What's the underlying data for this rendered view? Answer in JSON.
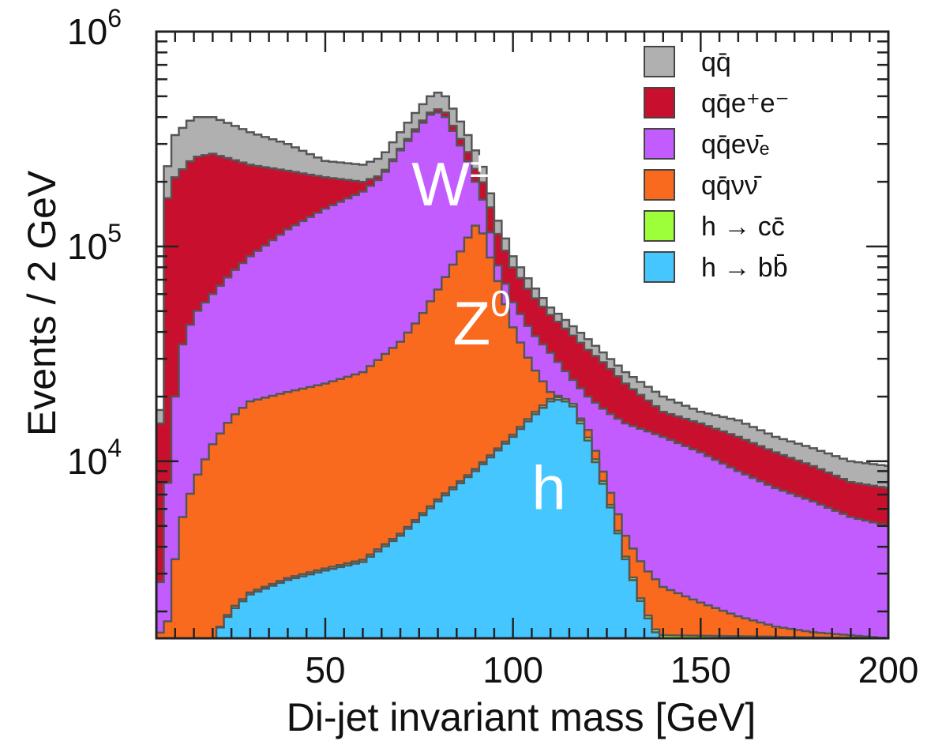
{
  "chart_data": {
    "type": "area",
    "stacked": true,
    "histogram": true,
    "bin_width": 2,
    "xlabel": "Di-jet invariant mass [GeV]",
    "ylabel": "Events / 2 GeV",
    "xlim": [
      5,
      200
    ],
    "ylim": [
      1500,
      1000000
    ],
    "yscale": "log",
    "x_ticks": [
      50,
      100,
      150,
      200
    ],
    "x_tick_labels": [
      "50",
      "100",
      "150",
      "200"
    ],
    "y_ticks": [
      10000,
      100000,
      1000000
    ],
    "y_tick_labels": [
      {
        "base": "10",
        "exp": "4"
      },
      {
        "base": "10",
        "exp": "5"
      },
      {
        "base": "10",
        "exp": "6"
      }
    ],
    "legend_position": "top-right",
    "legend": [
      {
        "label": "qq̄",
        "color": "#b0b0b0"
      },
      {
        "label": "qq̄e⁺e⁻",
        "color": "#c8102e"
      },
      {
        "label": "qq̄eν̄ₑ",
        "color": "#c25cff"
      },
      {
        "label": "qq̄νν̄",
        "color": "#f96a1e"
      },
      {
        "label": "h → cc̄",
        "color": "#9cff3a"
      },
      {
        "label": "h → bb̄",
        "color": "#46c6ff"
      }
    ],
    "annotations": [
      {
        "text": "W±",
        "x": 73,
        "y": 155000
      },
      {
        "text": "Z0",
        "x": 84,
        "y": 35000
      },
      {
        "text": "h",
        "x": 105,
        "y": 6000
      }
    ],
    "series_cumulative": [
      {
        "name": "h → bb̄",
        "color": "#46c6ff",
        "x": [
          5,
          10,
          15,
          20,
          25,
          30,
          40,
          50,
          60,
          70,
          80,
          90,
          100,
          105,
          110,
          113,
          116,
          120,
          125,
          130,
          135,
          138,
          140,
          200
        ],
        "y": [
          1500,
          1500,
          1500,
          1500,
          2000,
          2400,
          2800,
          3100,
          3400,
          4500,
          6500,
          9000,
          13000,
          16000,
          19000,
          19500,
          18000,
          12500,
          7000,
          3500,
          2000,
          1600,
          1500,
          1500
        ]
      },
      {
        "name": "h → cc̄",
        "color": "#9cff3a",
        "x": [
          5,
          10,
          15,
          20,
          25,
          30,
          40,
          50,
          60,
          70,
          80,
          90,
          100,
          105,
          110,
          113,
          116,
          120,
          125,
          130,
          135,
          138,
          140,
          200
        ],
        "y": [
          1500,
          1500,
          1500,
          1500,
          2050,
          2450,
          2860,
          3170,
          3480,
          4600,
          6650,
          9200,
          13300,
          16400,
          19500,
          20000,
          18500,
          12900,
          7200,
          3600,
          2060,
          1650,
          1550,
          1500
        ]
      },
      {
        "name": "qq̄νν̄",
        "color": "#f96a1e",
        "x": [
          5,
          8,
          10,
          12,
          15,
          20,
          25,
          30,
          40,
          50,
          60,
          70,
          75,
          80,
          85,
          88,
          90,
          92,
          95,
          100,
          105,
          110,
          115,
          120,
          125,
          130,
          135,
          140,
          150,
          160,
          170,
          180,
          190,
          200
        ],
        "y": [
          1500,
          1800,
          3500,
          5500,
          8000,
          12000,
          16000,
          19000,
          21000,
          23000,
          26000,
          36000,
          46000,
          63000,
          88000,
          110000,
          125000,
          115000,
          78000,
          42000,
          28000,
          21000,
          19000,
          14000,
          8000,
          4500,
          3200,
          2600,
          2200,
          1900,
          1700,
          1600,
          1550,
          1500
        ]
      },
      {
        "name": "qq̄eν̄ₑ",
        "color": "#c25cff",
        "x": [
          5,
          7,
          10,
          12,
          15,
          20,
          25,
          30,
          40,
          50,
          60,
          65,
          70,
          75,
          78,
          80,
          82,
          85,
          88,
          90,
          93,
          95,
          100,
          105,
          110,
          115,
          120,
          125,
          130,
          140,
          150,
          160,
          170,
          180,
          190,
          200
        ],
        "y": [
          1500,
          5000,
          20000,
          35000,
          48000,
          60000,
          75000,
          90000,
          120000,
          150000,
          180000,
          210000,
          280000,
          360000,
          410000,
          420000,
          400000,
          320000,
          250000,
          200000,
          150000,
          90000,
          55000,
          40000,
          32000,
          25000,
          20000,
          17000,
          15000,
          13000,
          11000,
          9000,
          7500,
          6500,
          5500,
          5000
        ]
      },
      {
        "name": "qq̄e⁺e⁻",
        "color": "#c8102e",
        "x": [
          5,
          7,
          10,
          15,
          20,
          25,
          30,
          40,
          50,
          60,
          65,
          70,
          75,
          78,
          80,
          82,
          85,
          88,
          90,
          93,
          95,
          100,
          105,
          110,
          115,
          120,
          125,
          130,
          140,
          150,
          160,
          170,
          180,
          190,
          200
        ],
        "y": [
          1500,
          150000,
          210000,
          260000,
          270000,
          255000,
          240000,
          225000,
          210000,
          200000,
          215000,
          285000,
          370000,
          420000,
          435000,
          420000,
          340000,
          275000,
          230000,
          185000,
          125000,
          80000,
          60000,
          48000,
          40000,
          33000,
          28000,
          23000,
          17000,
          15000,
          13000,
          11000,
          9500,
          8000,
          7500
        ]
      },
      {
        "name": "qq̄",
        "color": "#b0b0b0",
        "x": [
          5,
          7,
          10,
          15,
          20,
          25,
          30,
          40,
          50,
          60,
          65,
          70,
          75,
          78,
          80,
          82,
          85,
          88,
          90,
          93,
          95,
          100,
          105,
          110,
          115,
          120,
          125,
          130,
          140,
          150,
          160,
          170,
          180,
          190,
          200
        ],
        "y": [
          1500,
          200000,
          330000,
          400000,
          400000,
          370000,
          340000,
          300000,
          250000,
          240000,
          260000,
          340000,
          440000,
          500000,
          520000,
          500000,
          410000,
          330000,
          280000,
          215000,
          145000,
          90000,
          67000,
          52000,
          44000,
          37000,
          31000,
          26000,
          20000,
          17000,
          15500,
          13000,
          11500,
          10000,
          9500
        ]
      }
    ]
  }
}
